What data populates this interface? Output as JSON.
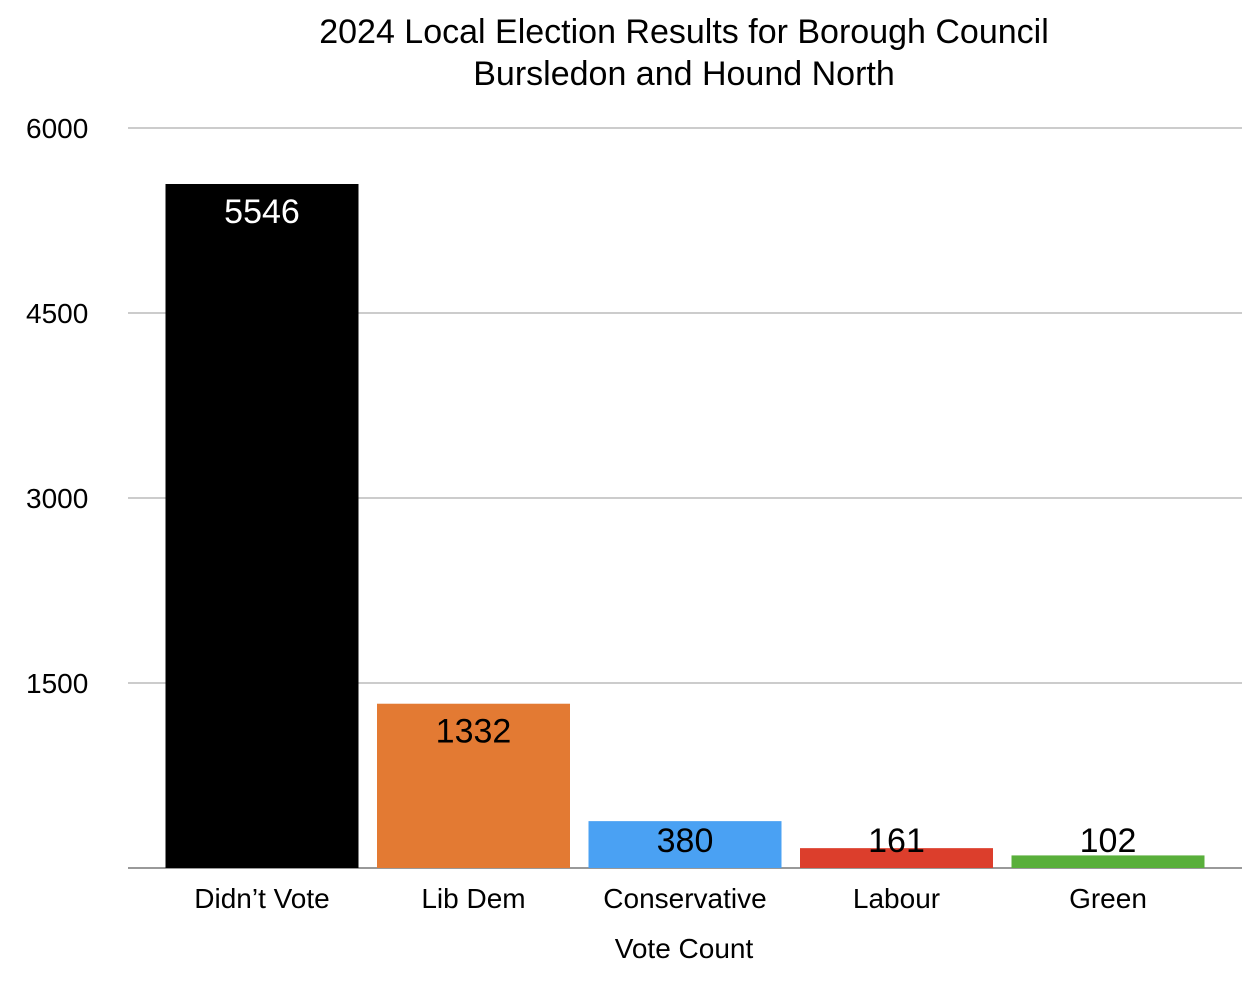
{
  "chart_data": {
    "type": "bar",
    "title": "2024 Local Election Results for Borough Council",
    "subtitle": "Bursledon and Hound North",
    "xlabel": "Vote Count",
    "ylabel": "",
    "categories": [
      "Didn’t Vote",
      "Lib Dem",
      "Conservative",
      "Labour",
      "Green"
    ],
    "values": [
      5546,
      1332,
      380,
      161,
      102
    ],
    "colors": [
      "#000000",
      "#E37A33",
      "#4AA1F3",
      "#DC3E2C",
      "#59AF3B"
    ],
    "label_colors": [
      "#ffffff",
      "#000000",
      "#000000",
      "#000000",
      "#000000"
    ],
    "ylim": [
      0,
      6000
    ],
    "yticks": [
      1500,
      3000,
      4500,
      6000
    ],
    "grid": true,
    "legend": "none",
    "data_labels": true
  }
}
